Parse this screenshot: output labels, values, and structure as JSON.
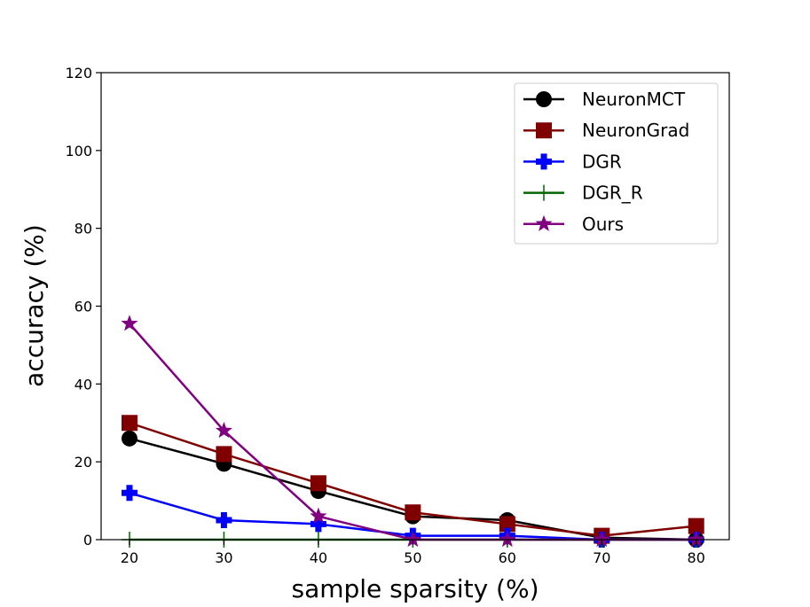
{
  "chart_data": {
    "type": "line",
    "title": "",
    "xlabel": "sample sparsity (%)",
    "ylabel": "accuracy (%)",
    "x": [
      20,
      30,
      40,
      50,
      60,
      70,
      80
    ],
    "xticks": [
      "20",
      "30",
      "40",
      "50",
      "60",
      "70",
      "80"
    ],
    "yticks": [
      "0",
      "20",
      "40",
      "60",
      "80",
      "100",
      "120"
    ],
    "xlim": [
      17,
      83.5
    ],
    "ylim": [
      0,
      120
    ],
    "grid": false,
    "legend_position": "upper right",
    "series": [
      {
        "name": "NeuronMCT",
        "color": "#000000",
        "marker": "circle",
        "values": [
          26,
          19.5,
          12.5,
          6,
          5,
          0.5,
          0
        ]
      },
      {
        "name": "NeuronGrad",
        "color": "#800000",
        "marker": "square",
        "values": [
          30,
          22,
          14.5,
          7,
          4,
          1,
          3.5
        ]
      },
      {
        "name": "DGR",
        "color": "#0000ff",
        "marker": "plus-filled",
        "values": [
          12,
          5,
          4,
          1,
          1,
          0,
          0
        ]
      },
      {
        "name": "DGR_R",
        "color": "#006400",
        "marker": "thin-plus",
        "values": [
          0,
          0,
          0,
          0,
          0,
          0,
          0
        ]
      },
      {
        "name": "Ours",
        "color": "#800080",
        "marker": "star",
        "values": [
          55.5,
          28,
          6,
          0,
          0,
          0,
          0
        ]
      }
    ]
  }
}
